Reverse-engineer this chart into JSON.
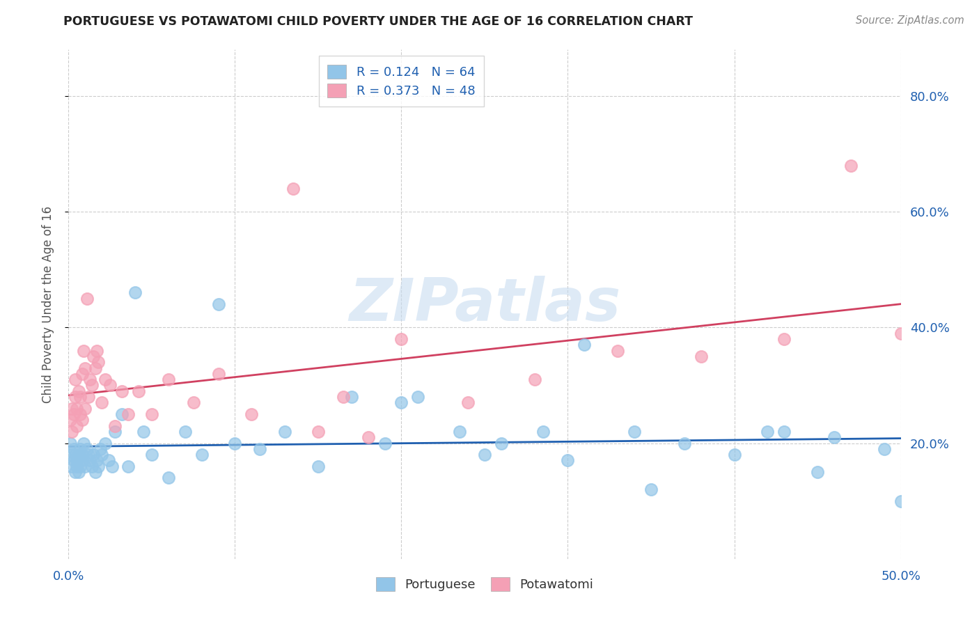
{
  "title": "PORTUGUESE VS POTAWATOMI CHILD POVERTY UNDER THE AGE OF 16 CORRELATION CHART",
  "source": "Source: ZipAtlas.com",
  "ylabel": "Child Poverty Under the Age of 16",
  "ytick_labels": [
    "20.0%",
    "40.0%",
    "60.0%",
    "80.0%"
  ],
  "ytick_values": [
    0.2,
    0.4,
    0.6,
    0.8
  ],
  "xlim": [
    0.0,
    0.5
  ],
  "ylim": [
    0.0,
    0.88
  ],
  "portuguese_R": 0.124,
  "portuguese_N": 64,
  "potawatomi_R": 0.373,
  "potawatomi_N": 48,
  "portuguese_color": "#92C5E8",
  "potawatomi_color": "#F4A0B5",
  "portuguese_line_color": "#2060B0",
  "potawatomi_line_color": "#D04060",
  "legend_text_color": "#2060B0",
  "title_color": "#222222",
  "axis_label_color": "#555555",
  "right_axis_color": "#2060B0",
  "grid_color": "#CCCCCC",
  "watermark_color": "#C8DCF0",
  "portuguese_x": [
    0.001,
    0.002,
    0.002,
    0.003,
    0.003,
    0.004,
    0.004,
    0.005,
    0.005,
    0.006,
    0.006,
    0.007,
    0.007,
    0.008,
    0.008,
    0.009,
    0.01,
    0.011,
    0.012,
    0.013,
    0.014,
    0.015,
    0.016,
    0.017,
    0.018,
    0.019,
    0.02,
    0.022,
    0.024,
    0.026,
    0.028,
    0.032,
    0.036,
    0.04,
    0.045,
    0.05,
    0.06,
    0.07,
    0.08,
    0.09,
    0.1,
    0.115,
    0.13,
    0.15,
    0.17,
    0.19,
    0.21,
    0.235,
    0.26,
    0.285,
    0.31,
    0.34,
    0.37,
    0.4,
    0.43,
    0.46,
    0.49,
    0.5,
    0.42,
    0.45,
    0.35,
    0.3,
    0.25,
    0.2
  ],
  "portuguese_y": [
    0.2,
    0.18,
    0.16,
    0.19,
    0.17,
    0.15,
    0.18,
    0.16,
    0.17,
    0.18,
    0.15,
    0.19,
    0.16,
    0.17,
    0.18,
    0.2,
    0.16,
    0.19,
    0.18,
    0.17,
    0.16,
    0.18,
    0.15,
    0.17,
    0.16,
    0.19,
    0.18,
    0.2,
    0.17,
    0.16,
    0.22,
    0.25,
    0.16,
    0.46,
    0.22,
    0.18,
    0.14,
    0.22,
    0.18,
    0.44,
    0.2,
    0.19,
    0.22,
    0.16,
    0.28,
    0.2,
    0.28,
    0.22,
    0.2,
    0.22,
    0.37,
    0.22,
    0.2,
    0.18,
    0.22,
    0.21,
    0.19,
    0.1,
    0.22,
    0.15,
    0.12,
    0.17,
    0.18,
    0.27
  ],
  "potawatomi_x": [
    0.001,
    0.002,
    0.002,
    0.003,
    0.004,
    0.004,
    0.005,
    0.005,
    0.006,
    0.007,
    0.007,
    0.008,
    0.008,
    0.009,
    0.01,
    0.01,
    0.011,
    0.012,
    0.013,
    0.014,
    0.015,
    0.016,
    0.017,
    0.018,
    0.02,
    0.022,
    0.025,
    0.028,
    0.032,
    0.036,
    0.042,
    0.05,
    0.06,
    0.075,
    0.09,
    0.11,
    0.135,
    0.165,
    0.2,
    0.24,
    0.28,
    0.33,
    0.38,
    0.43,
    0.47,
    0.5,
    0.15,
    0.18
  ],
  "potawatomi_y": [
    0.24,
    0.26,
    0.22,
    0.25,
    0.28,
    0.31,
    0.26,
    0.23,
    0.29,
    0.25,
    0.28,
    0.32,
    0.24,
    0.36,
    0.33,
    0.26,
    0.45,
    0.28,
    0.31,
    0.3,
    0.35,
    0.33,
    0.36,
    0.34,
    0.27,
    0.31,
    0.3,
    0.23,
    0.29,
    0.25,
    0.29,
    0.25,
    0.31,
    0.27,
    0.32,
    0.25,
    0.64,
    0.28,
    0.38,
    0.27,
    0.31,
    0.36,
    0.35,
    0.38,
    0.68,
    0.39,
    0.22,
    0.21
  ]
}
